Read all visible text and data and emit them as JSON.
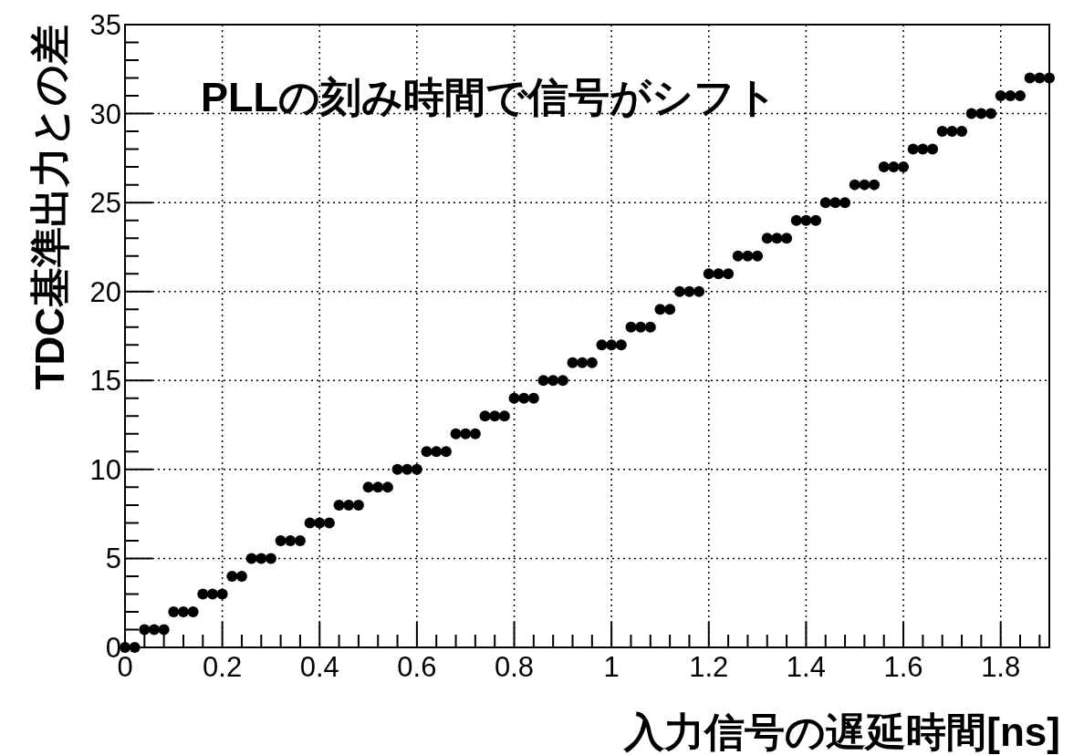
{
  "chart_data": {
    "type": "scatter",
    "xlabel": "入力信号の遅延時間[ns]",
    "ylabel": "TDC基準出力との差",
    "annotations": [
      "PLLの刻み時間で信号がシフト"
    ],
    "xlim": [
      0,
      1.9
    ],
    "xticks": [
      0,
      0.2,
      0.4,
      0.6,
      0.8,
      1,
      1.2,
      1.4,
      1.6,
      1.8
    ],
    "ylim": [
      0,
      35
    ],
    "yticks": [
      0,
      5,
      10,
      15,
      20,
      25,
      30,
      35
    ],
    "grid": true,
    "marker": "circle",
    "color": "#000000",
    "x": [
      0,
      0.02,
      0.04,
      0.06,
      0.08,
      0.1,
      0.12,
      0.14,
      0.16,
      0.18,
      0.2,
      0.22,
      0.24,
      0.26,
      0.28,
      0.3,
      0.32,
      0.34,
      0.36,
      0.38,
      0.4,
      0.42,
      0.44,
      0.46,
      0.48,
      0.5,
      0.52,
      0.54,
      0.56,
      0.58,
      0.6,
      0.62,
      0.64,
      0.66,
      0.68,
      0.7,
      0.72,
      0.74,
      0.76,
      0.78,
      0.8,
      0.82,
      0.84,
      0.86,
      0.88,
      0.9,
      0.92,
      0.94,
      0.96,
      0.98,
      1,
      1.02,
      1.04,
      1.06,
      1.08,
      1.1,
      1.12,
      1.14,
      1.16,
      1.18,
      1.2,
      1.22,
      1.24,
      1.26,
      1.28,
      1.3,
      1.32,
      1.34,
      1.36,
      1.38,
      1.4,
      1.42,
      1.44,
      1.46,
      1.48,
      1.5,
      1.52,
      1.54,
      1.56,
      1.58,
      1.6,
      1.62,
      1.64,
      1.66,
      1.68,
      1.7,
      1.72,
      1.74,
      1.76,
      1.78,
      1.8,
      1.82,
      1.84,
      1.86,
      1.88,
      1.9
    ],
    "values": [
      0,
      0,
      1,
      1,
      1,
      2,
      2,
      2,
      3,
      3,
      3,
      4,
      4,
      5,
      5,
      5,
      6,
      6,
      6,
      7,
      7,
      7,
      8,
      8,
      8,
      9,
      9,
      9,
      10,
      10,
      10,
      11,
      11,
      11,
      12,
      12,
      12,
      13,
      13,
      13,
      14,
      14,
      14,
      15,
      15,
      15,
      16,
      16,
      16,
      17,
      17,
      17,
      18,
      18,
      18,
      19,
      19,
      20,
      20,
      20,
      21,
      21,
      21,
      22,
      22,
      22,
      23,
      23,
      23,
      24,
      24,
      24,
      25,
      25,
      25,
      26,
      26,
      26,
      27,
      27,
      27,
      28,
      28,
      28,
      29,
      29,
      29,
      30,
      30,
      30,
      31,
      31,
      31,
      32,
      32,
      32
    ]
  }
}
